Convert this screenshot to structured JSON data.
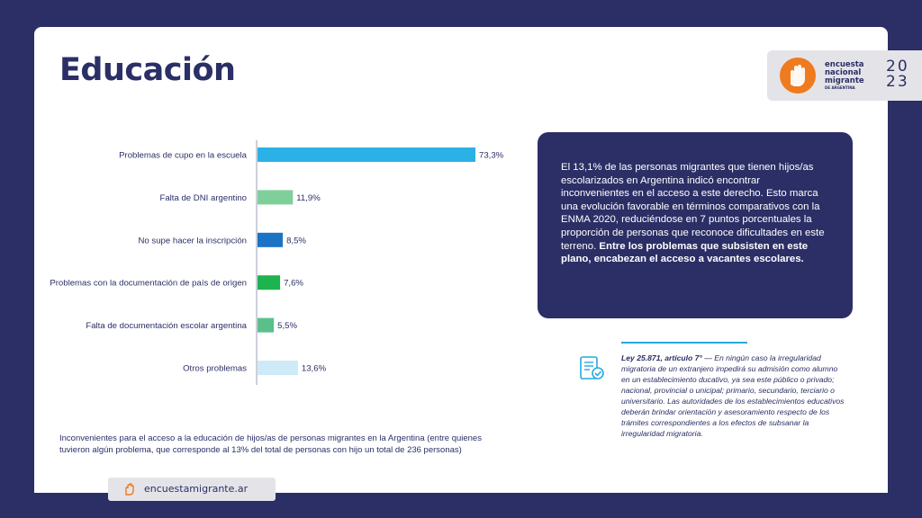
{
  "page": {
    "title": "Educación",
    "logo": {
      "line1": "encuesta",
      "line2": "nacional",
      "line3": "migrante",
      "line4": "DE ARGENTINA",
      "year_top": "20",
      "year_bottom": "23",
      "color": "#f07a1e"
    },
    "caption": "Inconvenientes para el acceso a la educación de hijos/as de personas migrantes en la Argentina (entre quienes tuvieron algún problema, que corresponde al 13% del total de personas con hijo un total de 236 personas)",
    "website": "encuestamigrante.ar"
  },
  "panel": {
    "text_regular": "El 13,1% de las personas migrantes que tienen hijos/as escolarizados en Argentina indicó encontrar inconvenientes en el acceso a este derecho. Esto marca una evolución favorable en términos comparativos con la ENMA 2020, reduciéndose en 7 puntos porcentuales la proporción de personas que reconoce dificultades en este terreno. ",
    "text_bold": "Entre los problemas que subsisten en este plano, encabezan el acceso a vacantes escolares."
  },
  "law": {
    "ref": "Ley 25.871, artículo 7°",
    "text": " — En ningún caso la irregularidad migratoria de un extranjero impedirá su admisión como alumno en un establecimiento  ducativo, ya sea este público o privado; nacional, provincial o  unicipal; primario, secundario, terciario o universitario. Las autoridades de los establecimientos educativos deberán brindar orientación y asesoramiento respecto de los trámites correspondientes a los efectos de subsanar la irregularidad migratoria."
  },
  "chart_data": {
    "type": "bar",
    "orientation": "horizontal",
    "title": "",
    "xlabel": "",
    "ylabel": "",
    "grid": false,
    "legend": "none",
    "xlim": [
      0,
      73.3
    ],
    "categories": [
      "Problemas de cupo en la escuela",
      "Falta de DNI argentino",
      "No supe hacer la inscripción",
      "Problemas con la documentación de país de origen",
      "Falta de documentación escolar argentina",
      "Otros problemas"
    ],
    "values": [
      73.3,
      11.9,
      8.5,
      7.6,
      5.5,
      13.6
    ],
    "value_labels": [
      "73,3%",
      "11,9%",
      "8,5%",
      "7,6%",
      "5,5%",
      "13,6%"
    ],
    "colors": [
      "#2bb1e6",
      "#7fcf9a",
      "#1a73c4",
      "#1db34e",
      "#5ac08a",
      "#cdeaf6"
    ]
  }
}
